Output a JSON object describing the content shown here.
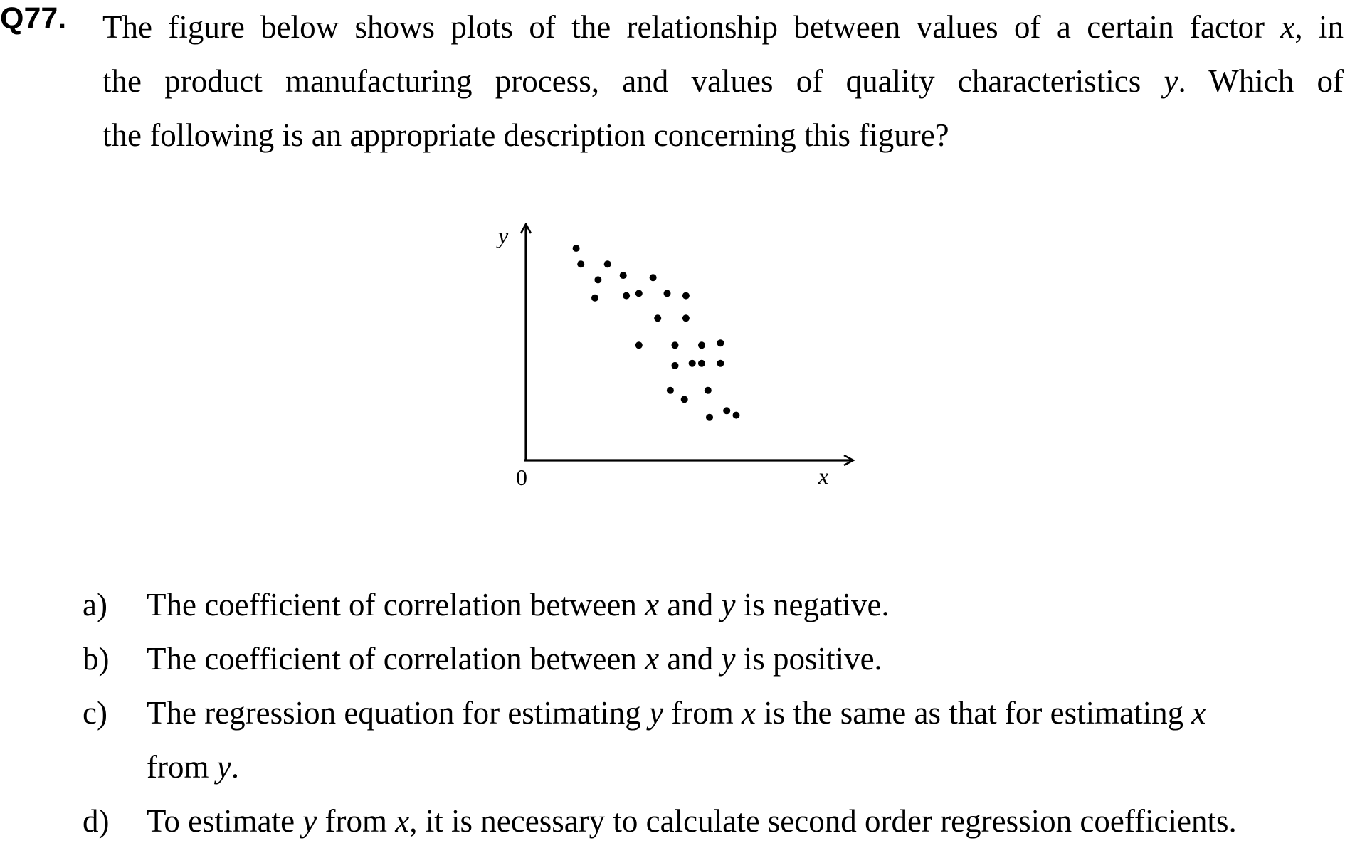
{
  "question": {
    "number": "Q77.",
    "line1_a": "The figure below shows plots of the relationship between values of a certain factor ",
    "line1_var": "x",
    "line1_b": ", in",
    "line2_a": "the product manufacturing process, and values of quality characteristics ",
    "line2_var": "y",
    "line2_b": ".   Which of",
    "line3": "the following is an appropriate description concerning this figure?"
  },
  "chart_data": {
    "type": "scatter",
    "xlabel": "x",
    "ylabel": "y",
    "origin_label": "0",
    "xlim": [
      0,
      100
    ],
    "ylim": [
      0,
      100
    ],
    "grid": false,
    "points": [
      {
        "x": 16,
        "y": 94
      },
      {
        "x": 17.5,
        "y": 87
      },
      {
        "x": 22,
        "y": 72
      },
      {
        "x": 23,
        "y": 80
      },
      {
        "x": 26,
        "y": 87
      },
      {
        "x": 31,
        "y": 82
      },
      {
        "x": 32,
        "y": 73
      },
      {
        "x": 36,
        "y": 74
      },
      {
        "x": 36,
        "y": 51
      },
      {
        "x": 40.5,
        "y": 81
      },
      {
        "x": 42,
        "y": 63
      },
      {
        "x": 45,
        "y": 74
      },
      {
        "x": 46,
        "y": 31
      },
      {
        "x": 47.5,
        "y": 51
      },
      {
        "x": 47.5,
        "y": 42
      },
      {
        "x": 50.5,
        "y": 27
      },
      {
        "x": 51,
        "y": 73
      },
      {
        "x": 51,
        "y": 63
      },
      {
        "x": 53,
        "y": 43
      },
      {
        "x": 56,
        "y": 51
      },
      {
        "x": 56,
        "y": 43
      },
      {
        "x": 58,
        "y": 31
      },
      {
        "x": 58.5,
        "y": 19
      },
      {
        "x": 62,
        "y": 52
      },
      {
        "x": 62,
        "y": 43
      },
      {
        "x": 64,
        "y": 22
      },
      {
        "x": 67,
        "y": 20
      }
    ]
  },
  "choices": [
    {
      "letter": "a)",
      "t1": "The coefficient of correlation between ",
      "v1": "x",
      "t2": " and ",
      "v2": "y",
      "t3": " is negative."
    },
    {
      "letter": "b)",
      "t1": "The coefficient of correlation between ",
      "v1": "x",
      "t2": " and ",
      "v2": "y",
      "t3": " is positive."
    },
    {
      "letter": "c)",
      "t1": "The regression equation for estimating ",
      "v1": "y",
      "t2": " from ",
      "v2": "x",
      "t3": " is the same as that for estimating ",
      "v3": "x",
      "t4": "from ",
      "v4": "y",
      "t5": "."
    },
    {
      "letter": "d)",
      "t1": "To estimate ",
      "v1": "y",
      "t2": " from ",
      "v2": "x",
      "t3": ", it is necessary to calculate second order regression coefficients."
    }
  ]
}
